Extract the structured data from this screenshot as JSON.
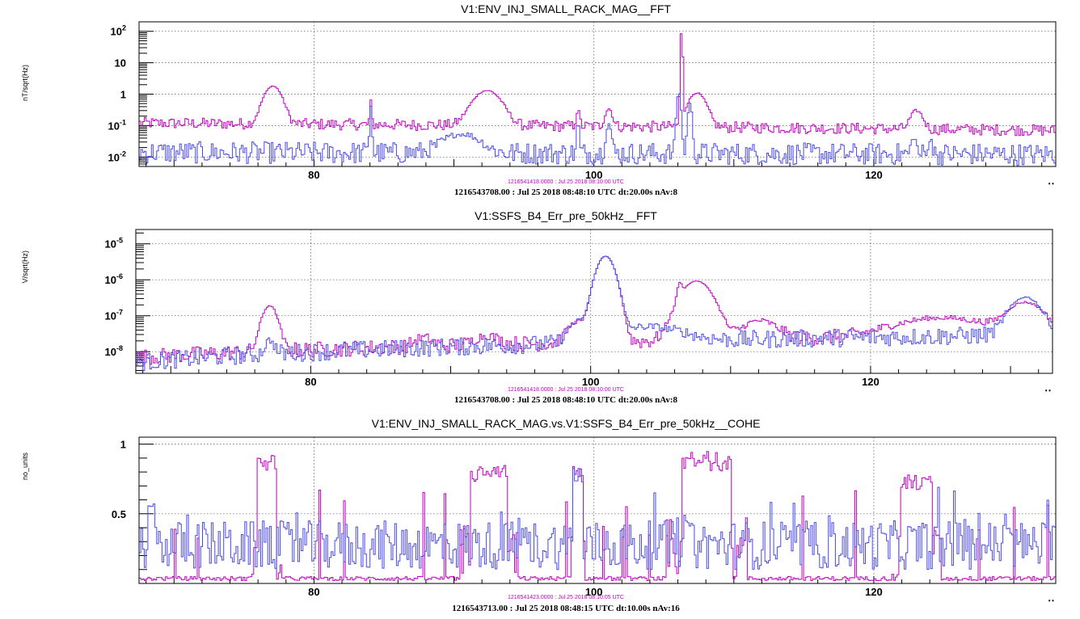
{
  "colors": {
    "reference": "#c000c0",
    "current": "#4a4ae8"
  },
  "chart_data": [
    {
      "type": "line",
      "title": "V1:ENV_INJ_SMALL_RACK_MAG__FFT",
      "ylabel": "nT/sqrt(Hz)",
      "xlabel": "",
      "x_unit_marker": "Hz",
      "log_y": true,
      "xlim": [
        67.5,
        133
      ],
      "ylim": [
        0.005,
        200
      ],
      "x_tick_labels": [
        "80",
        "100",
        "120"
      ],
      "y_tick_labels": [
        {
          "v": 100,
          "text": "10",
          "sup": "2"
        },
        {
          "v": 10,
          "text": "10",
          "sup": ""
        },
        {
          "v": 1,
          "text": "1",
          "sup": ""
        },
        {
          "v": 0.1,
          "text": "10",
          "sup": "-1"
        },
        {
          "v": 0.01,
          "text": "10",
          "sup": "-2"
        }
      ],
      "ref_text": "1216541418.0000 : Jul 25 2018 08:10:00 UTC",
      "info_text": "1216543708.00 : Jul 25 2018 08:48:10 UTC dt:20.00s nAv:8",
      "series": [
        {
          "color": "#c000c0",
          "base": 0.12,
          "base_end": 0.07,
          "noise": 0.18,
          "peaks": [
            [
              77,
              1.7,
              0.7
            ],
            [
              84,
              0.5,
              0.08
            ],
            [
              92.3,
              1.2,
              1.1
            ],
            [
              98.8,
              0.2,
              0.15
            ],
            [
              101,
              0.25,
              0.3
            ],
            [
              106.2,
              100,
              0.07
            ],
            [
              107.3,
              1.0,
              0.7
            ],
            [
              123,
              0.22,
              0.5
            ]
          ]
        },
        {
          "color": "#4a4ae8",
          "base": 0.014,
          "base_end": 0.012,
          "noise": 0.35,
          "peaks": [
            [
              84,
              0.4,
              0.08
            ],
            [
              90.5,
              0.04,
              1.5
            ],
            [
              98.8,
              0.12,
              0.1
            ],
            [
              101,
              0.1,
              0.2
            ],
            [
              106,
              1.1,
              0.15
            ],
            [
              106.8,
              0.5,
              0.15
            ],
            [
              122.8,
              0.03,
              0.2
            ],
            [
              124,
              0.04,
              0.1
            ]
          ]
        }
      ]
    },
    {
      "type": "line",
      "title": "V1:SSFS_B4_Err_pre_50kHz__FFT",
      "ylabel": "V/sqrt(Hz)",
      "xlabel": "",
      "x_unit_marker": "Hz",
      "log_y": true,
      "xlim": [
        67.5,
        133
      ],
      "ylim": [
        2.5e-09,
        2.5e-05
      ],
      "x_tick_labels": [
        "80",
        "100",
        "120"
      ],
      "y_tick_labels": [
        {
          "v": 1e-05,
          "text": "10",
          "sup": "-5"
        },
        {
          "v": 1e-06,
          "text": "10",
          "sup": "-6"
        },
        {
          "v": 1e-07,
          "text": "10",
          "sup": "-7"
        },
        {
          "v": 1e-08,
          "text": "10",
          "sup": "-8"
        }
      ],
      "ref_text": "1216541418.0000 : Jul 25 2018 08:10:00 UTC",
      "info_text": "1216543708.00 : Jul 25 2018 08:48:10 UTC dt:20.00s nAv:8",
      "series": [
        {
          "color": "#c000c0",
          "base": 7e-09,
          "base_end": 3e-08,
          "noise": 0.22,
          "peaks": [
            [
              77,
              1.8e-07,
              0.6
            ],
            [
              88,
              1e-08,
              0.8
            ],
            [
              92.5,
              1.2e-08,
              1.0
            ],
            [
              99,
              5e-08,
              0.8
            ],
            [
              101,
              4.5e-06,
              0.7
            ],
            [
              106.3,
              5e-07,
              0.2
            ],
            [
              107.5,
              9e-07,
              1.2
            ],
            [
              112,
              5e-08,
              1.5
            ],
            [
              125,
              6e-08,
              4.0
            ],
            [
              131,
              2e-07,
              1.5
            ]
          ]
        },
        {
          "color": "#4a4ae8",
          "base": 5e-09,
          "base_end": 3e-08,
          "noise": 0.25,
          "peaks": [
            [
              77,
              1.2e-08,
              0.4
            ],
            [
              99,
              5e-08,
              0.8
            ],
            [
              101,
              4.5e-06,
              0.7
            ],
            [
              104,
              3e-08,
              3.0
            ],
            [
              131,
              3e-07,
              1.2
            ]
          ]
        }
      ]
    },
    {
      "type": "line",
      "title": "V1:ENV_INJ_SMALL_RACK_MAG.vs.V1:SSFS_B4_Err_pre_50kHz__COHE",
      "ylabel": "no_units",
      "xlabel": "",
      "x_unit_marker": "Hz",
      "log_y": false,
      "xlim": [
        67.5,
        133
      ],
      "ylim": [
        0,
        1.05
      ],
      "x_tick_labels": [
        "80",
        "100",
        "120"
      ],
      "y_tick_labels": [
        {
          "v": 1,
          "text": "1",
          "sup": ""
        },
        {
          "v": 0.5,
          "text": "0.5",
          "sup": ""
        }
      ],
      "ref_text": "1216541423.0000 : Jul 25 2018 08:10:05 UTC",
      "info_text": "1216543713.00 : Jul 25 2018 08:48:15 UTC dt:10.00s nAv:16",
      "series": [
        {
          "color": "#c000c0",
          "base": 0.02,
          "noise": 0.03,
          "blocks": [
            [
              76.6,
              0.95,
              0.7
            ],
            [
              92.4,
              0.85,
              1.3
            ],
            [
              98.8,
              0.85,
              0.35
            ],
            [
              108,
              0.95,
              1.8
            ],
            [
              123,
              0.78,
              1.1
            ]
          ]
        },
        {
          "color": "#4a4ae8",
          "base": 0.1,
          "noise": 0.35,
          "blocks": [
            [
              68.3,
              0.6,
              0.25
            ],
            [
              98.8,
              0.85,
              0.35
            ],
            [
              106.7,
              0.45,
              0.35
            ]
          ]
        }
      ]
    }
  ]
}
